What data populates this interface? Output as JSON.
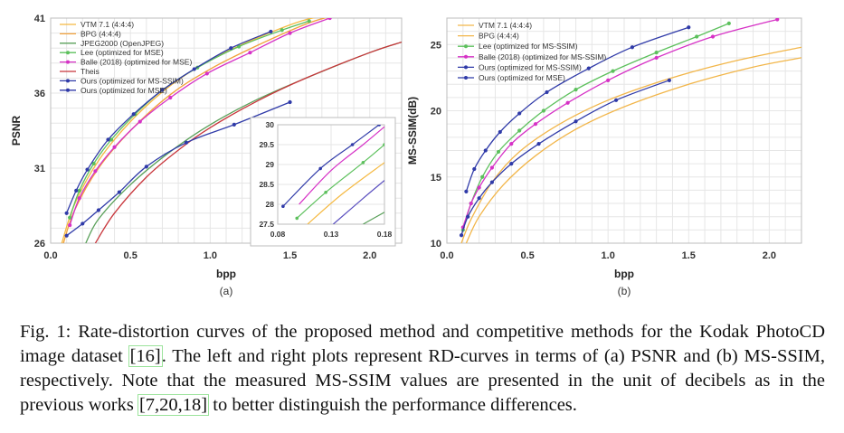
{
  "chart_data": [
    {
      "type": "line",
      "panel_label": "(a)",
      "xlabel": "bpp",
      "ylabel": "PSNR",
      "xlim": [
        0.0,
        2.2
      ],
      "ylim": [
        26,
        41
      ],
      "xticks": [
        "0.0",
        "0.5",
        "1.0",
        "1.5",
        "2.0"
      ],
      "yticks": [
        "26",
        "31",
        "36",
        "41"
      ],
      "grid": true,
      "legend_position": "top-left",
      "series": [
        {
          "name": "VTM 7.1 (4:4:4)",
          "color": "#f5b942",
          "markers": false,
          "x": [
            0.07,
            0.15,
            0.3,
            0.5,
            0.75,
            1.0,
            1.3,
            1.6,
            1.8
          ],
          "y": [
            26.0,
            28.6,
            31.5,
            34.1,
            36.5,
            38.2,
            39.7,
            40.9,
            41.2
          ]
        },
        {
          "name": "BPG (4:4:4)",
          "color": "#f2a13a",
          "markers": false,
          "x": [
            0.08,
            0.15,
            0.3,
            0.5,
            0.75,
            1.0,
            1.3,
            1.6,
            1.75
          ],
          "y": [
            26.0,
            28.2,
            31.0,
            33.5,
            35.9,
            37.6,
            39.2,
            40.6,
            41.1
          ]
        },
        {
          "name": "JPEG2000 (OpenJPEG)",
          "color": "#5aa05a",
          "markers": false,
          "x": [
            0.22,
            0.3,
            0.5,
            0.75,
            1.0,
            1.3,
            1.6,
            2.0,
            2.2
          ],
          "y": [
            26.0,
            27.6,
            29.9,
            32.1,
            33.9,
            35.6,
            37.0,
            38.7,
            39.4
          ]
        },
        {
          "name": "Lee (optimized for MSE)",
          "color": "#5cc05c",
          "markers": true,
          "x": [
            0.12,
            0.18,
            0.27,
            0.38,
            0.53,
            0.7,
            0.92,
            1.18,
            1.45,
            1.62
          ],
          "y": [
            27.7,
            29.5,
            31.3,
            32.9,
            34.6,
            36.2,
            37.7,
            39.1,
            40.2,
            40.8
          ]
        },
        {
          "name": "Balle (2018) (optimized for MSE)",
          "color": "#d631c6",
          "markers": true,
          "x": [
            0.12,
            0.18,
            0.28,
            0.4,
            0.56,
            0.75,
            0.98,
            1.25,
            1.5,
            1.75
          ],
          "y": [
            27.2,
            29.0,
            30.8,
            32.4,
            34.1,
            35.7,
            37.3,
            38.7,
            40.0,
            41.0
          ]
        },
        {
          "name": "Theis",
          "color": "#c8353b",
          "markers": false,
          "x": [
            0.28,
            0.4,
            0.6,
            0.8,
            1.0,
            1.3,
            1.6,
            2.0,
            2.2
          ],
          "y": [
            26.0,
            28.0,
            30.4,
            32.2,
            33.7,
            35.5,
            37.0,
            38.7,
            39.4
          ]
        },
        {
          "name": "Ours (optimized for MS-SSIM)",
          "color": "#2f3aa8",
          "markers": true,
          "x": [
            0.1,
            0.2,
            0.3,
            0.43,
            0.6,
            0.85,
            1.15,
            1.5
          ],
          "y": [
            26.5,
            27.3,
            28.2,
            29.4,
            31.1,
            32.7,
            33.9,
            35.4
          ]
        },
        {
          "name": "Ours (optimized for MSE)",
          "color": "#2f3aa8",
          "markers": true,
          "x": [
            0.1,
            0.16,
            0.23,
            0.36,
            0.52,
            0.7,
            0.9,
            1.13,
            1.38
          ],
          "y": [
            28.0,
            29.5,
            30.9,
            32.9,
            34.6,
            36.2,
            37.6,
            39.0,
            40.1
          ]
        }
      ],
      "inset": {
        "xlim": [
          0.08,
          0.18
        ],
        "ylim": [
          27.5,
          30
        ],
        "xticks": [
          "0.08",
          "0.13",
          "0.18"
        ],
        "yticks": [
          "27.5",
          "28",
          "28.5",
          "29",
          "29.5",
          "30"
        ],
        "series": [
          {
            "color": "#2f3aa8",
            "markers": true,
            "x": [
              0.085,
              0.12,
              0.15,
              0.175
            ],
            "y": [
              27.95,
              28.9,
              29.5,
              30.0
            ]
          },
          {
            "color": "#d631c6",
            "markers": false,
            "x": [
              0.1,
              0.13,
              0.16,
              0.18
            ],
            "y": [
              28.0,
              28.85,
              29.5,
              29.95
            ]
          },
          {
            "color": "#5cc05c",
            "markers": true,
            "x": [
              0.098,
              0.125,
              0.16,
              0.18
            ],
            "y": [
              27.65,
              28.3,
              29.05,
              29.5
            ]
          },
          {
            "color": "#f5b942",
            "markers": false,
            "x": [
              0.108,
              0.14,
              0.18
            ],
            "y": [
              27.5,
              28.25,
              29.05
            ]
          },
          {
            "color": "#5a4fbf",
            "markers": false,
            "x": [
              0.132,
              0.16,
              0.18
            ],
            "y": [
              27.5,
              28.15,
              28.6
            ]
          },
          {
            "color": "#5aa05a",
            "markers": false,
            "x": [
              0.16,
              0.18
            ],
            "y": [
              27.5,
              27.8
            ]
          }
        ]
      }
    },
    {
      "type": "line",
      "panel_label": "(b)",
      "xlabel": "bpp",
      "ylabel": "MS-SSIM(dB)",
      "xlim": [
        0.0,
        2.2
      ],
      "ylim": [
        10,
        27
      ],
      "xticks": [
        "0.0",
        "0.5",
        "1.0",
        "1.5",
        "2.0"
      ],
      "yticks": [
        "10",
        "15",
        "20",
        "25"
      ],
      "grid": true,
      "legend_position": "top-left",
      "series": [
        {
          "name": "VTM 7.1 (4:4:4)",
          "color": "#f2b64a",
          "markers": false,
          "x": [
            0.12,
            0.2,
            0.35,
            0.55,
            0.8,
            1.1,
            1.5,
            1.9,
            2.2
          ],
          "y": [
            10.0,
            12.0,
            14.4,
            16.6,
            18.6,
            20.3,
            22.0,
            23.3,
            24.0
          ]
        },
        {
          "name": "BPG (4:4:4)",
          "color": "#f2b64a",
          "markers": false,
          "x": [
            0.09,
            0.15,
            0.28,
            0.45,
            0.7,
            1.0,
            1.4,
            1.8,
            2.2
          ],
          "y": [
            10.0,
            11.8,
            14.6,
            16.9,
            19.0,
            20.8,
            22.5,
            23.8,
            24.8
          ]
        },
        {
          "name": "Lee (optimized for MS-SSIM)",
          "color": "#5cc05c",
          "markers": true,
          "x": [
            0.1,
            0.15,
            0.22,
            0.32,
            0.45,
            0.6,
            0.8,
            1.03,
            1.3,
            1.55,
            1.75
          ],
          "y": [
            11.0,
            13.0,
            15.0,
            16.9,
            18.5,
            20.0,
            21.6,
            23.0,
            24.4,
            25.6,
            26.6
          ]
        },
        {
          "name": "Balle (2018) (optimized for MS-SSIM)",
          "color": "#d631c6",
          "markers": true,
          "x": [
            0.1,
            0.15,
            0.2,
            0.28,
            0.4,
            0.55,
            0.75,
            1.0,
            1.3,
            1.65,
            2.05
          ],
          "y": [
            11.2,
            13.0,
            14.2,
            15.7,
            17.5,
            19.0,
            20.6,
            22.3,
            24.0,
            25.6,
            26.9
          ]
        },
        {
          "name": "Ours (optimized for MS-SSIM)",
          "color": "#2f3aa8",
          "markers": true,
          "x": [
            0.12,
            0.17,
            0.24,
            0.33,
            0.45,
            0.62,
            0.88,
            1.15,
            1.5
          ],
          "y": [
            13.9,
            15.6,
            17.0,
            18.4,
            19.8,
            21.4,
            23.2,
            24.8,
            26.3
          ]
        },
        {
          "name": "Ours (optimized for MSE)",
          "color": "#2f3aa8",
          "markers": true,
          "x": [
            0.09,
            0.13,
            0.2,
            0.28,
            0.4,
            0.57,
            0.8,
            1.05,
            1.38
          ],
          "y": [
            10.6,
            12.0,
            13.4,
            14.6,
            16.0,
            17.5,
            19.2,
            20.8,
            22.3
          ]
        }
      ]
    }
  ],
  "panels": [
    {
      "label": "(a)"
    },
    {
      "label": "(b)"
    }
  ],
  "caption": {
    "part1": "Fig. 1: Rate-distortion curves of the proposed method and competitive methods for the Kodak PhotoCD image dataset ",
    "cite1": "[16]",
    "part2": ". The left and right plots represent RD-curves in terms of (a) PSNR and (b) MS-SSIM, respectively. Note that the measured MS-SSIM values are presented in the unit of decibels as in the previous works ",
    "cite2": "[7,20,18]",
    "part3": " to better distinguish the performance differences."
  }
}
